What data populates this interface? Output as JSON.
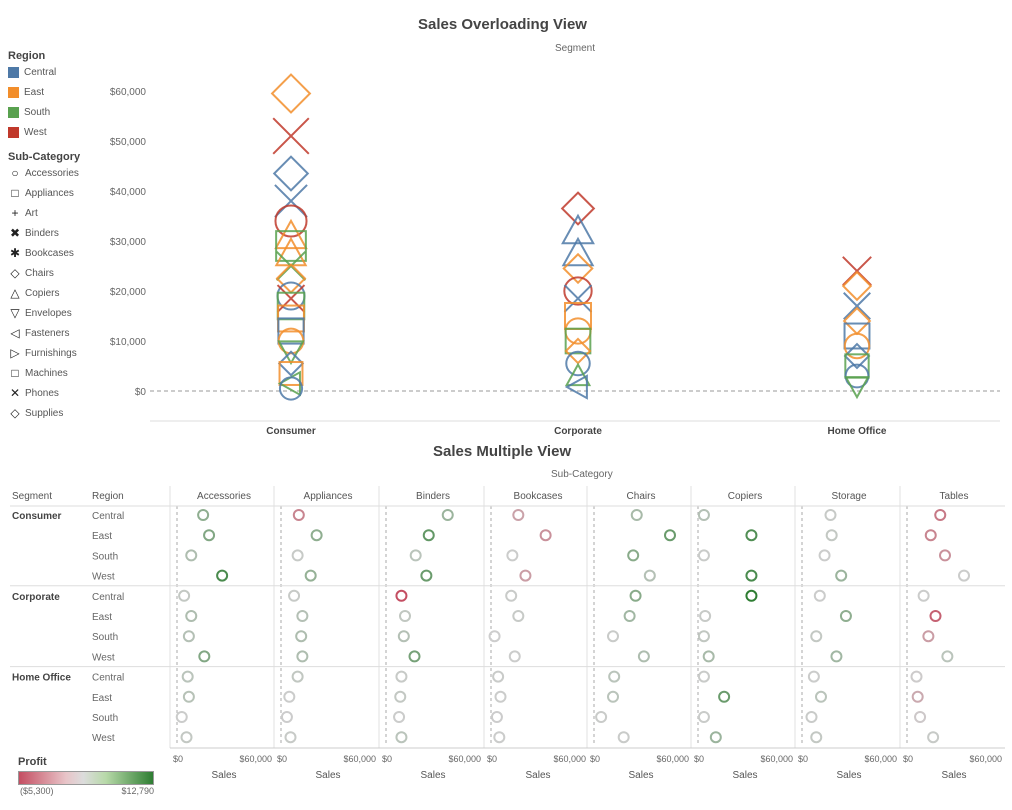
{
  "chart_data": [
    {
      "type": "scatter",
      "title": "Sales Overloading View",
      "subtitle": "Segment",
      "categories": [
        "Consumer",
        "Corporate",
        "Home Office"
      ],
      "ylim": [
        0,
        65000
      ],
      "yticks": [
        "$0",
        "$10,000",
        "$20,000",
        "$30,000",
        "$40,000",
        "$50,000",
        "$60,000"
      ],
      "ytick_values": [
        0,
        10000,
        20000,
        30000,
        40000,
        50000,
        60000
      ],
      "legend_region": {
        "title": "Region",
        "items": [
          {
            "name": "Central",
            "color": "#4e79a7"
          },
          {
            "name": "East",
            "color": "#f28e2b"
          },
          {
            "name": "South",
            "color": "#59a14f"
          },
          {
            "name": "West",
            "color": "#c0392b"
          }
        ]
      },
      "legend_subcategory": {
        "title": "Sub-Category",
        "items": [
          {
            "name": "Accessories",
            "shape": "circle"
          },
          {
            "name": "Appliances",
            "shape": "square"
          },
          {
            "name": "Art",
            "shape": "plus"
          },
          {
            "name": "Binders",
            "shape": "x-bold"
          },
          {
            "name": "Bookcases",
            "shape": "asterisk"
          },
          {
            "name": "Chairs",
            "shape": "diamond"
          },
          {
            "name": "Copiers",
            "shape": "triangle-up"
          },
          {
            "name": "Envelopes",
            "shape": "triangle-down"
          },
          {
            "name": "Fasteners",
            "shape": "triangle-left"
          },
          {
            "name": "Furnishings",
            "shape": "triangle-right"
          },
          {
            "name": "Machines",
            "shape": "square"
          },
          {
            "name": "Phones",
            "shape": "x"
          },
          {
            "name": "Supplies",
            "shape": "diamond"
          }
        ]
      },
      "points": [
        {
          "segment": "Consumer",
          "region": "East",
          "shape": "diamond",
          "value": 59500
        },
        {
          "segment": "Consumer",
          "region": "West",
          "shape": "x",
          "value": 51000
        },
        {
          "segment": "Consumer",
          "region": "Central",
          "shape": "diamond",
          "value": 43500
        },
        {
          "segment": "Consumer",
          "region": "Central",
          "shape": "x",
          "value": 38000
        },
        {
          "segment": "Consumer",
          "region": "West",
          "shape": "circle",
          "value": 34000
        },
        {
          "segment": "Consumer",
          "region": "East",
          "shape": "triangle-up",
          "value": 31000
        },
        {
          "segment": "Consumer",
          "region": "South",
          "shape": "square",
          "value": 29000
        },
        {
          "segment": "Consumer",
          "region": "East",
          "shape": "triangle-up",
          "value": 27500
        },
        {
          "segment": "Consumer",
          "region": "South",
          "shape": "x",
          "value": 25000
        },
        {
          "segment": "Consumer",
          "region": "East",
          "shape": "diamond",
          "value": 22500
        },
        {
          "segment": "Consumer",
          "region": "Central",
          "shape": "circle",
          "value": 19000
        },
        {
          "segment": "Consumer",
          "region": "West",
          "shape": "x",
          "value": 18500
        },
        {
          "segment": "Consumer",
          "region": "South",
          "shape": "square",
          "value": 17000
        },
        {
          "segment": "Consumer",
          "region": "East",
          "shape": "square",
          "value": 14500
        },
        {
          "segment": "Consumer",
          "region": "Central",
          "shape": "square",
          "value": 12000
        },
        {
          "segment": "Consumer",
          "region": "East",
          "shape": "circle",
          "value": 10000
        },
        {
          "segment": "Consumer",
          "region": "South",
          "shape": "triangle-down",
          "value": 8000
        },
        {
          "segment": "Consumer",
          "region": "Central",
          "shape": "diamond",
          "value": 5500
        },
        {
          "segment": "Consumer",
          "region": "East",
          "shape": "square",
          "value": 3500
        },
        {
          "segment": "Consumer",
          "region": "South",
          "shape": "triangle-left",
          "value": 1500
        },
        {
          "segment": "Consumer",
          "region": "Central",
          "shape": "circle",
          "value": 500
        },
        {
          "segment": "Corporate",
          "region": "West",
          "shape": "diamond",
          "value": 36500
        },
        {
          "segment": "Corporate",
          "region": "Central",
          "shape": "triangle-up",
          "value": 32000
        },
        {
          "segment": "Corporate",
          "region": "Central",
          "shape": "triangle-up",
          "value": 27500
        },
        {
          "segment": "Corporate",
          "region": "East",
          "shape": "diamond",
          "value": 24500
        },
        {
          "segment": "Corporate",
          "region": "West",
          "shape": "circle",
          "value": 20000
        },
        {
          "segment": "Corporate",
          "region": "Central",
          "shape": "x",
          "value": 18500
        },
        {
          "segment": "Corporate",
          "region": "East",
          "shape": "square",
          "value": 15000
        },
        {
          "segment": "Corporate",
          "region": "East",
          "shape": "circle",
          "value": 12000
        },
        {
          "segment": "Corporate",
          "region": "South",
          "shape": "square",
          "value": 10000
        },
        {
          "segment": "Corporate",
          "region": "East",
          "shape": "diamond",
          "value": 8000
        },
        {
          "segment": "Corporate",
          "region": "Central",
          "shape": "circle",
          "value": 5500
        },
        {
          "segment": "Corporate",
          "region": "South",
          "shape": "triangle-up",
          "value": 3000
        },
        {
          "segment": "Corporate",
          "region": "Central",
          "shape": "triangle-left",
          "value": 800
        },
        {
          "segment": "Home Office",
          "region": "West",
          "shape": "x",
          "value": 24000
        },
        {
          "segment": "Home Office",
          "region": "East",
          "shape": "diamond",
          "value": 21000
        },
        {
          "segment": "Home Office",
          "region": "Central",
          "shape": "x",
          "value": 17000
        },
        {
          "segment": "Home Office",
          "region": "East",
          "shape": "diamond",
          "value": 14000
        },
        {
          "segment": "Home Office",
          "region": "Central",
          "shape": "square",
          "value": 11000
        },
        {
          "segment": "Home Office",
          "region": "East",
          "shape": "circle",
          "value": 9000
        },
        {
          "segment": "Home Office",
          "region": "Central",
          "shape": "diamond",
          "value": 7000
        },
        {
          "segment": "Home Office",
          "region": "South",
          "shape": "square",
          "value": 5000
        },
        {
          "segment": "Home Office",
          "region": "Central",
          "shape": "circle",
          "value": 3000
        },
        {
          "segment": "Home Office",
          "region": "South",
          "shape": "triangle-down",
          "value": 1000
        }
      ]
    },
    {
      "type": "scatter",
      "title": "Sales Multiple View",
      "subtitle": "Sub-Category",
      "row_headers": {
        "segment": "Segment",
        "region": "Region"
      },
      "columns": [
        "Accessories",
        "Appliances",
        "Binders",
        "Bookcases",
        "Chairs",
        "Copiers",
        "Storage",
        "Tables"
      ],
      "segments": [
        "Consumer",
        "Corporate",
        "Home Office"
      ],
      "regions": [
        "Central",
        "East",
        "South",
        "West"
      ],
      "xlabel": "Sales",
      "xticks": [
        "$0",
        "$60,000"
      ],
      "xlim": [
        0,
        80000
      ],
      "color_legend": {
        "title": "Profit",
        "min_label": "($5,300)",
        "max_label": "$12,790",
        "min": -5300,
        "max": 12790
      },
      "sales": [
        [
          [
            22000,
            15000,
            52000,
            23000,
            36000,
            5000,
            24000,
            28000
          ],
          [
            27000,
            30000,
            36000,
            46000,
            64000,
            45000,
            25000,
            20000
          ],
          [
            12000,
            14000,
            25000,
            18000,
            33000,
            5000,
            19000,
            32000
          ],
          [
            38000,
            25000,
            34000,
            29000,
            47000,
            45000,
            33000,
            48000
          ]
        ],
        [
          [
            6000,
            11000,
            13000,
            17000,
            35000,
            45000,
            15000,
            14000
          ],
          [
            12000,
            18000,
            16000,
            23000,
            30000,
            6000,
            37000,
            24000
          ],
          [
            10000,
            17000,
            15000,
            3000,
            16000,
            5000,
            12000,
            18000
          ],
          [
            23000,
            18000,
            24000,
            20000,
            42000,
            9000,
            29000,
            34000
          ]
        ],
        [
          [
            9000,
            14000,
            13000,
            6000,
            17000,
            5000,
            10000,
            8000
          ],
          [
            10000,
            7000,
            12000,
            8000,
            16000,
            22000,
            16000,
            9000
          ],
          [
            4000,
            5000,
            11000,
            5000,
            6000,
            5000,
            8000,
            11000
          ],
          [
            8000,
            8000,
            13000,
            7000,
            25000,
            15000,
            12000,
            22000
          ]
        ]
      ],
      "profit": [
        [
          [
            5000,
            -3000,
            4000,
            -1800,
            3000,
            2000,
            500,
            -3500
          ],
          [
            6000,
            5000,
            8500,
            -2500,
            8000,
            10000,
            800,
            -3000
          ],
          [
            2500,
            500,
            1500,
            200,
            5500,
            300,
            200,
            -2500
          ],
          [
            10500,
            4500,
            8000,
            -2000,
            2000,
            10500,
            4000,
            200
          ]
        ],
        [
          [
            800,
            500,
            -5300,
            300,
            5500,
            12790,
            200,
            200
          ],
          [
            2500,
            2000,
            1000,
            500,
            3500,
            500,
            5000,
            -4500
          ],
          [
            2000,
            2500,
            2000,
            0,
            300,
            1000,
            800,
            -2000
          ],
          [
            6000,
            2500,
            7000,
            200,
            2500,
            3000,
            3500,
            1500
          ]
        ],
        [
          [
            1500,
            1000,
            500,
            300,
            1500,
            300,
            200,
            -100
          ],
          [
            1800,
            200,
            800,
            200,
            1500,
            8000,
            1500,
            -1500
          ],
          [
            200,
            100,
            200,
            100,
            300,
            300,
            300,
            -200
          ],
          [
            800,
            500,
            1500,
            200,
            300,
            4000,
            800,
            500
          ]
        ]
      ]
    }
  ]
}
